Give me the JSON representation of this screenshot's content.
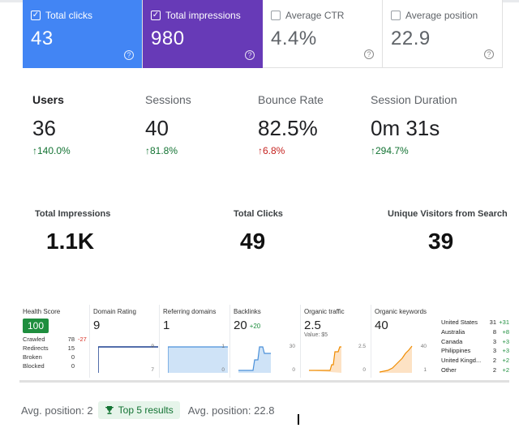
{
  "gsc": {
    "cards": [
      {
        "label": "Total clicks",
        "value": "43",
        "checked": true
      },
      {
        "label": "Total impressions",
        "value": "980",
        "checked": true
      },
      {
        "label": "Average CTR",
        "value": "4.4%",
        "checked": false
      },
      {
        "label": "Average position",
        "value": "22.9",
        "checked": false
      }
    ],
    "help_glyph": "?",
    "check_glyph": "✓",
    "colors": {
      "clicks": "#4285f4",
      "impressions": "#673ab7"
    }
  },
  "ga": {
    "items": [
      {
        "label": "Users",
        "value": "36",
        "arrow": "↑",
        "change": "140.0%",
        "trend": "up-good"
      },
      {
        "label": "Sessions",
        "value": "40",
        "arrow": "↑",
        "change": "81.8%",
        "trend": "up-good"
      },
      {
        "label": "Bounce Rate",
        "value": "82.5%",
        "arrow": "↑",
        "change": "6.8%",
        "trend": "up-bad"
      },
      {
        "label": "Session Duration",
        "value": "0m 31s",
        "arrow": "↑",
        "change": "294.7%",
        "trend": "up-good"
      }
    ]
  },
  "totals": {
    "impressions": {
      "label": "Total Impressions",
      "value": "1.1K"
    },
    "clicks": {
      "label": "Total Clicks",
      "value": "49"
    },
    "visitors": {
      "label": "Unique Visitors from Search",
      "value": "39"
    }
  },
  "ahrefs": {
    "health": {
      "label": "Health Score",
      "value": "100",
      "rows": [
        {
          "name": "Crawled",
          "value": "78",
          "delta": "-27"
        },
        {
          "name": "Redirects",
          "value": "15",
          "delta": ""
        },
        {
          "name": "Broken",
          "value": "0",
          "delta": ""
        },
        {
          "name": "Blocked",
          "value": "0",
          "delta": ""
        }
      ]
    },
    "domain_rating": {
      "label": "Domain Rating",
      "value": "9",
      "tick_max": "9",
      "tick_min": "7"
    },
    "referring_domains": {
      "label": "Referring domains",
      "value": "1",
      "tick_max": "1",
      "tick_min": "0"
    },
    "backlinks": {
      "label": "Backlinks",
      "value": "20",
      "delta": "+20",
      "tick_max": "30",
      "tick_min": "0"
    },
    "organic_traffic": {
      "label": "Organic traffic",
      "value": "2.5",
      "sub": "Value: $5",
      "tick_max": "2.5",
      "tick_min": "0"
    },
    "organic_keywords": {
      "label": "Organic keywords",
      "value": "40",
      "tick_max": "40",
      "tick_min": "1"
    },
    "countries": [
      {
        "name": "United States",
        "value": "31",
        "delta": "+31"
      },
      {
        "name": "Australia",
        "value": "8",
        "delta": "+8"
      },
      {
        "name": "Canada",
        "value": "3",
        "delta": "+3"
      },
      {
        "name": "Philippines",
        "value": "3",
        "delta": "+3"
      },
      {
        "name": "United Kingd...",
        "value": "2",
        "delta": "+2"
      },
      {
        "name": "Other",
        "value": "2",
        "delta": "+2"
      }
    ]
  },
  "footer": {
    "avg_position_a": "Avg. position: 2",
    "badge": "Top 5 results",
    "avg_position_b": "Avg. position: 22.8",
    "badge_icon": "trophy-icon"
  }
}
